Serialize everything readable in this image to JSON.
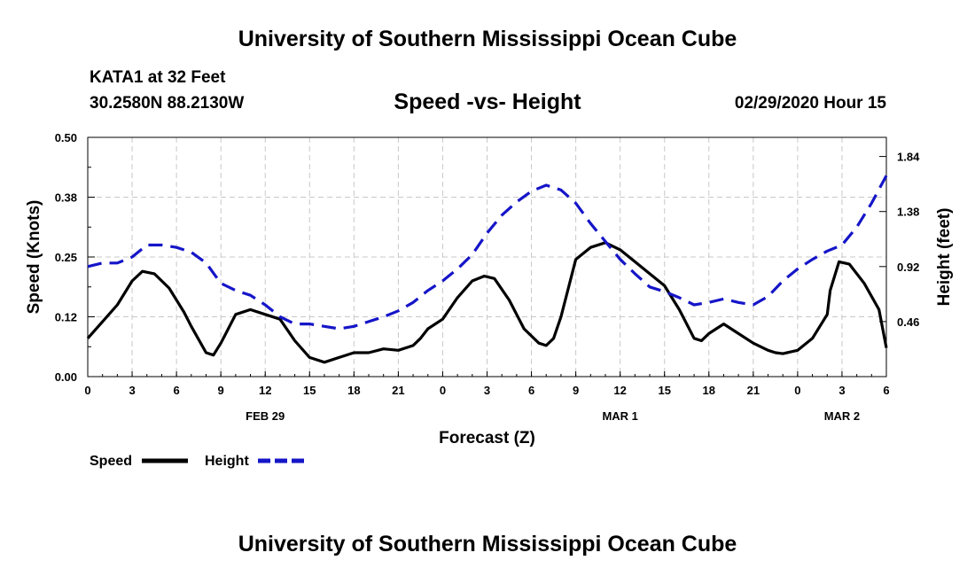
{
  "header": {
    "title": "University of Southern Mississippi Ocean Cube",
    "station": "KATA1 at 32 Feet",
    "coords": "30.2580N 88.2130W",
    "subtitle": "Speed -vs- Height",
    "datetime": "02/29/2020 Hour 15"
  },
  "footer": {
    "title": "University of Southern Mississippi Ocean Cube"
  },
  "colors": {
    "speed": "#000000",
    "height": "#1515c8",
    "grid": "#c8c8c8"
  },
  "chart_data": {
    "type": "line",
    "title": "Speed -vs- Height",
    "xlabel": "Forecast (Z)",
    "ylabel": "Speed (Knots)",
    "y2label": "Height (feet)",
    "grid": true,
    "legend_position": "bottom-left",
    "x_range": [
      0,
      54
    ],
    "ylim": [
      0,
      0.5
    ],
    "y2lim": [
      0.0,
      2.0
    ],
    "x_ticks": [
      {
        "x": 0,
        "label": "0"
      },
      {
        "x": 3,
        "label": "3"
      },
      {
        "x": 6,
        "label": "6"
      },
      {
        "x": 9,
        "label": "9"
      },
      {
        "x": 12,
        "label": "12"
      },
      {
        "x": 15,
        "label": "15"
      },
      {
        "x": 18,
        "label": "18"
      },
      {
        "x": 21,
        "label": "21"
      },
      {
        "x": 24,
        "label": "0"
      },
      {
        "x": 27,
        "label": "3"
      },
      {
        "x": 30,
        "label": "6"
      },
      {
        "x": 33,
        "label": "9"
      },
      {
        "x": 36,
        "label": "12"
      },
      {
        "x": 39,
        "label": "15"
      },
      {
        "x": 42,
        "label": "18"
      },
      {
        "x": 45,
        "label": "21"
      },
      {
        "x": 48,
        "label": "0"
      },
      {
        "x": 51,
        "label": "3"
      },
      {
        "x": 54,
        "label": "6"
      }
    ],
    "date_labels": [
      {
        "x": 12,
        "label": "FEB 29"
      },
      {
        "x": 36,
        "label": "MAR 1"
      },
      {
        "x": 51,
        "label": "MAR 2"
      }
    ],
    "y_ticks": [
      {
        "y": 0.0,
        "label": "0.00"
      },
      {
        "y": 0.125,
        "label": "0.12"
      },
      {
        "y": 0.25,
        "label": "0.25"
      },
      {
        "y": 0.375,
        "label": "0.38"
      },
      {
        "y": 0.5,
        "label": "0.50"
      }
    ],
    "y2_ticks": [
      {
        "y": 0.46,
        "label": "0.46"
      },
      {
        "y": 0.92,
        "label": "0.92"
      },
      {
        "y": 1.38,
        "label": "1.38"
      },
      {
        "y": 1.84,
        "label": "1.84"
      }
    ],
    "series": [
      {
        "name": "Speed",
        "axis": "left",
        "style": "solid",
        "x": [
          0,
          1,
          2,
          3,
          3.7,
          4.5,
          5.5,
          6.5,
          7,
          8,
          8.5,
          9,
          10,
          11,
          12,
          13,
          14,
          15,
          16,
          17,
          18,
          19,
          20,
          21,
          22,
          22.5,
          23,
          24,
          25,
          26,
          26.8,
          27.5,
          28.5,
          29.5,
          30.5,
          31,
          31.5,
          32,
          33,
          34,
          35,
          36,
          37,
          38,
          39,
          40,
          41,
          41.5,
          42,
          42.5,
          43,
          43.5,
          44,
          45,
          46,
          46.5,
          47,
          48,
          49,
          50,
          50.2,
          50.8,
          51.5,
          52.5,
          53.5,
          54
        ],
        "values": [
          0.08,
          0.115,
          0.15,
          0.2,
          0.22,
          0.215,
          0.185,
          0.135,
          0.105,
          0.05,
          0.045,
          0.07,
          0.13,
          0.14,
          0.13,
          0.12,
          0.075,
          0.04,
          0.03,
          0.04,
          0.05,
          0.05,
          0.058,
          0.055,
          0.065,
          0.08,
          0.1,
          0.12,
          0.165,
          0.2,
          0.21,
          0.205,
          0.16,
          0.1,
          0.07,
          0.065,
          0.08,
          0.125,
          0.245,
          0.27,
          0.28,
          0.265,
          0.24,
          0.215,
          0.19,
          0.14,
          0.08,
          0.075,
          0.09,
          0.1,
          0.11,
          0.1,
          0.09,
          0.07,
          0.055,
          0.05,
          0.048,
          0.055,
          0.08,
          0.13,
          0.18,
          0.24,
          0.235,
          0.195,
          0.14,
          0.06
        ]
      },
      {
        "name": "Height",
        "axis": "right",
        "style": "dashed",
        "x": [
          0,
          1,
          2,
          3,
          4,
          5,
          6,
          7,
          8,
          9,
          10,
          11,
          12,
          13,
          14,
          15,
          16,
          17,
          18,
          19,
          20,
          21,
          22,
          23,
          24,
          25,
          26,
          27,
          28,
          29,
          30,
          31,
          32,
          33,
          34,
          35,
          36,
          37,
          38,
          39,
          40,
          41,
          42,
          43,
          44,
          45,
          46,
          47,
          48,
          49,
          50,
          51,
          52,
          53,
          54
        ],
        "values": [
          0.92,
          0.95,
          0.95,
          1.0,
          1.1,
          1.1,
          1.08,
          1.04,
          0.95,
          0.78,
          0.72,
          0.68,
          0.6,
          0.5,
          0.44,
          0.44,
          0.42,
          0.4,
          0.42,
          0.46,
          0.5,
          0.55,
          0.62,
          0.72,
          0.8,
          0.9,
          1.02,
          1.2,
          1.35,
          1.46,
          1.55,
          1.6,
          1.56,
          1.45,
          1.28,
          1.13,
          0.98,
          0.86,
          0.75,
          0.71,
          0.66,
          0.6,
          0.62,
          0.65,
          0.62,
          0.6,
          0.67,
          0.8,
          0.9,
          0.98,
          1.05,
          1.1,
          1.25,
          1.45,
          1.68
        ]
      }
    ],
    "legend": [
      {
        "name": "Speed",
        "style": "solid"
      },
      {
        "name": "Height",
        "style": "dashed"
      }
    ]
  }
}
